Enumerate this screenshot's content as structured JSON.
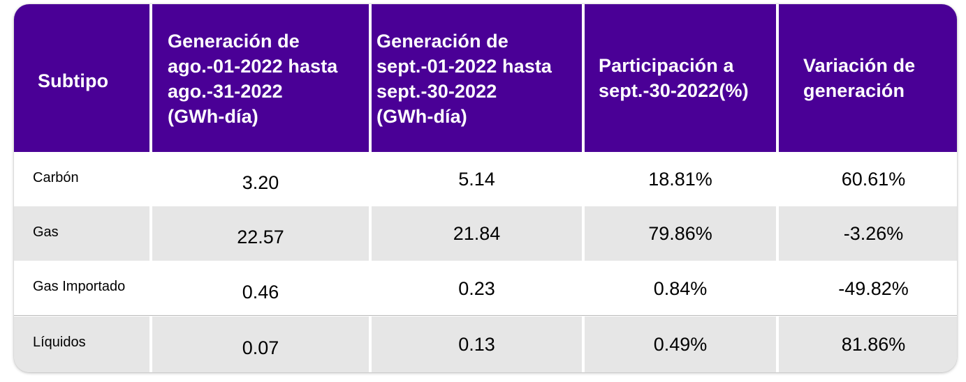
{
  "table": {
    "headers": [
      "Subtipo",
      "Generación de ago.-01-2022 hasta ago.-31-2022 (GWh-día)",
      "Generación de sept.-01-2022 hasta sept.-30-2022 (GWh-día)",
      "Participación a sept.-30-2022(%)",
      "Variación de generación"
    ],
    "header_lines": [
      [
        "Subtipo"
      ],
      [
        "Generación de",
        "ago.-01-2022 hasta",
        "ago.-31-2022",
        "(GWh-día)"
      ],
      [
        "Generación de",
        "sept.-01-2022 hasta",
        "sept.-30-2022",
        "(GWh-día)"
      ],
      [
        "Participación a",
        "sept.-30-2022(%)"
      ],
      [
        "Variación de",
        "generación"
      ]
    ],
    "rows": [
      {
        "subtipo": "Carbón",
        "ago": "3.20",
        "sept": "5.14",
        "participacion": "18.81%",
        "variacion": "60.61%"
      },
      {
        "subtipo": "Gas",
        "ago": "22.57",
        "sept": "21.84",
        "participacion": "79.86%",
        "variacion": "-3.26%"
      },
      {
        "subtipo": "Gas Importado",
        "ago": "0.46",
        "sept": "0.23",
        "participacion": "0.84%",
        "variacion": "-49.82%"
      },
      {
        "subtipo": "Líquidos",
        "ago": "0.07",
        "sept": "0.13",
        "participacion": "0.49%",
        "variacion": "81.86%"
      }
    ]
  },
  "colors": {
    "header_bg": "#4a0096",
    "header_text": "#ffffff",
    "row_alt_bg": "#e6e6e6",
    "row_bg": "#ffffff"
  }
}
